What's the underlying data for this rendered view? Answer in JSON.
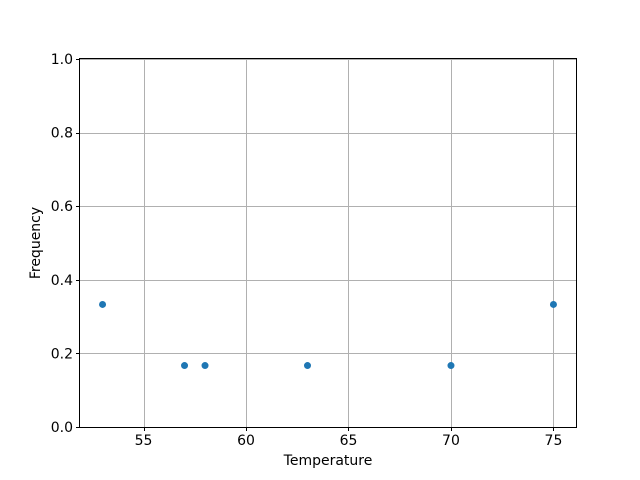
{
  "chart_data": {
    "type": "scatter",
    "title": "",
    "xlabel": "Temperature",
    "ylabel": "Frequency",
    "x": [
      53,
      57,
      58,
      63,
      70,
      75
    ],
    "y": [
      0.333,
      0.167,
      0.167,
      0.167,
      0.167,
      0.333
    ],
    "xlim": [
      51.9,
      76.1
    ],
    "ylim": [
      0.0,
      1.0
    ],
    "xticks": [
      55,
      60,
      65,
      70,
      75
    ],
    "xtick_labels": [
      "55",
      "60",
      "65",
      "70",
      "75"
    ],
    "yticks": [
      0.0,
      0.2,
      0.4,
      0.6,
      0.8,
      1.0
    ],
    "ytick_labels": [
      "0.0",
      "0.2",
      "0.4",
      "0.6",
      "0.8",
      "1.0"
    ],
    "grid": true,
    "legend_position": "none",
    "marker_color": "#1f77b4",
    "grid_color": "#b0b0b0",
    "axis_color": "#000000",
    "background_color": "#ffffff"
  }
}
